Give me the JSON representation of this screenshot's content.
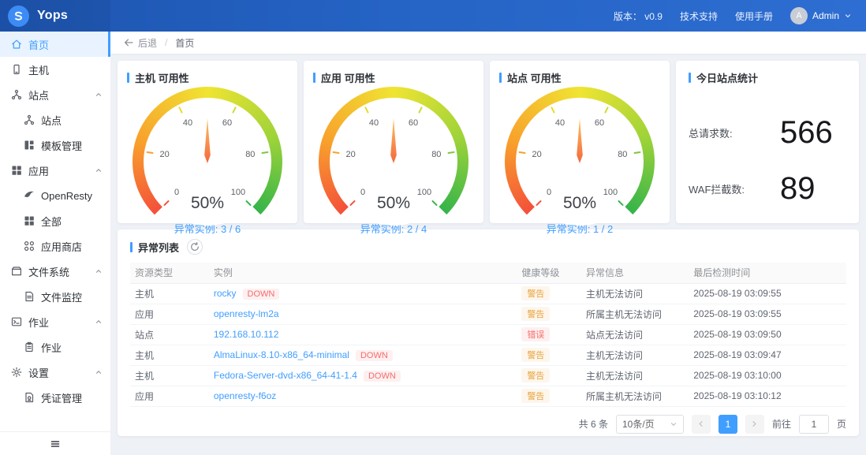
{
  "header": {
    "logo_text": "Yops",
    "version": "版本： v0.9",
    "support": "技术支持",
    "manual": "使用手册",
    "user_name": "Admin",
    "avatar_initial": "A"
  },
  "breadcrumb": {
    "back": "后退",
    "separator": "/",
    "current": "首页"
  },
  "sidebar": {
    "items": [
      {
        "label": "首页",
        "icon": "home-icon",
        "active": true
      },
      {
        "label": "主机",
        "icon": "host-icon"
      },
      {
        "label": "站点",
        "icon": "sitemap-icon",
        "group": true,
        "expanded": true
      },
      {
        "label": "站点",
        "icon": "sitemap-icon",
        "sub": true
      },
      {
        "label": "模板管理",
        "icon": "template-icon",
        "sub": true
      },
      {
        "label": "应用",
        "icon": "apps-icon",
        "group": true,
        "expanded": true
      },
      {
        "label": "OpenResty",
        "icon": "openresty-icon",
        "sub": true
      },
      {
        "label": "全部",
        "icon": "grid-icon",
        "sub": true
      },
      {
        "label": "应用商店",
        "icon": "appstore-icon",
        "sub": true
      },
      {
        "label": "文件系统",
        "icon": "filesystem-icon",
        "group": true,
        "expanded": true
      },
      {
        "label": "文件监控",
        "icon": "file-monitor-icon",
        "sub": true
      },
      {
        "label": "作业",
        "icon": "job-icon",
        "group": true,
        "expanded": true
      },
      {
        "label": "作业",
        "icon": "job-doc-icon",
        "sub": true
      },
      {
        "label": "设置",
        "icon": "gear-icon",
        "group": true,
        "expanded": true
      },
      {
        "label": "凭证管理",
        "icon": "credential-icon",
        "sub": true
      }
    ],
    "collapse_icon": "hamburger-icon"
  },
  "chart_data": [
    {
      "type": "gauge",
      "title": "主机 可用性",
      "value": 50,
      "display": "50%",
      "min": 0,
      "max": 100,
      "ticks": [
        "0",
        "20",
        "40",
        "60",
        "80",
        "100"
      ],
      "footer": "异常实例: 3 / 6",
      "arc_colors": [
        "#f4503a",
        "#f8a12c",
        "#f0e432",
        "#9ed339",
        "#35b44a"
      ]
    },
    {
      "type": "gauge",
      "title": "应用 可用性",
      "value": 50,
      "display": "50%",
      "min": 0,
      "max": 100,
      "ticks": [
        "0",
        "20",
        "40",
        "60",
        "80",
        "100"
      ],
      "footer": "异常实例: 2 / 4",
      "arc_colors": [
        "#f4503a",
        "#f8a12c",
        "#f0e432",
        "#9ed339",
        "#35b44a"
      ]
    },
    {
      "type": "gauge",
      "title": "站点 可用性",
      "value": 50,
      "display": "50%",
      "min": 0,
      "max": 100,
      "ticks": [
        "0",
        "20",
        "40",
        "60",
        "80",
        "100"
      ],
      "footer": "异常实例: 1 / 2",
      "arc_colors": [
        "#f4503a",
        "#f8a12c",
        "#f0e432",
        "#9ed339",
        "#35b44a"
      ]
    }
  ],
  "stats_card": {
    "title": "今日站点统计",
    "metrics": [
      {
        "label": "总请求数:",
        "value": "566"
      },
      {
        "label": "WAF拦截数:",
        "value": "89"
      }
    ]
  },
  "table_card": {
    "title": "异常列表",
    "refresh_icon": "refresh-icon",
    "columns": [
      "资源类型",
      "实例",
      "健康等级",
      "异常信息",
      "最后检测时间"
    ],
    "rows": [
      {
        "type": "主机",
        "instance": "rocky",
        "tag": "DOWN",
        "health": "警告",
        "severity": "warning",
        "message": "主机无法访问",
        "time": "2025-08-19 03:09:55"
      },
      {
        "type": "应用",
        "instance": "openresty-lm2a",
        "tag": "",
        "health": "警告",
        "severity": "warning",
        "message": "所属主机无法访问",
        "time": "2025-08-19 03:09:55"
      },
      {
        "type": "站点",
        "instance": "192.168.10.112",
        "tag": "",
        "health": "错误",
        "severity": "error",
        "message": "站点无法访问",
        "time": "2025-08-19 03:09:50"
      },
      {
        "type": "主机",
        "instance": "AlmaLinux-8.10-x86_64-minimal",
        "tag": "DOWN",
        "health": "警告",
        "severity": "warning",
        "message": "主机无法访问",
        "time": "2025-08-19 03:09:47"
      },
      {
        "type": "主机",
        "instance": "Fedora-Server-dvd-x86_64-41-1.4",
        "tag": "DOWN",
        "health": "警告",
        "severity": "warning",
        "message": "主机无法访问",
        "time": "2025-08-19 03:10:00"
      },
      {
        "type": "应用",
        "instance": "openresty-f6oz",
        "tag": "",
        "health": "警告",
        "severity": "warning",
        "message": "所属主机无法访问",
        "time": "2025-08-19 03:10:12"
      }
    ],
    "pagination": {
      "total": "共 6 条",
      "page_size": "10条/页",
      "current_page": "1",
      "goto_label": "前往",
      "goto_value": "1",
      "page_suffix": "页"
    }
  },
  "colors": {
    "accent": "#409eff",
    "header_gradient": [
      "#1e55b0",
      "#2e6ed2"
    ],
    "warning_text": "#e6a23c",
    "warning_bg": "#fdf6ec",
    "error_text": "#f56c6c",
    "error_bg": "#fef0f0",
    "gauge_tick_colors": [
      "#f4503a",
      "#f8a02c",
      "#eada30",
      "#cfdd33",
      "#7cc83e",
      "#35b44a"
    ]
  }
}
